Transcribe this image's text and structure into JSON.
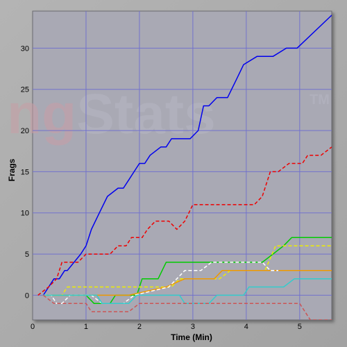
{
  "chart_data": {
    "type": "line",
    "title": "",
    "xlabel": "Time (Min)",
    "ylabel": "Frags",
    "xlim": [
      0,
      5.6
    ],
    "ylim": [
      -3,
      34.5
    ],
    "xticks": [
      0,
      1,
      2,
      3,
      4,
      5
    ],
    "yticks": [
      0,
      5,
      10,
      15,
      20,
      25,
      30
    ],
    "grid": true,
    "legend": "none",
    "plot_background": "#a9a9b4",
    "grid_color": "#7272cc",
    "watermark": {
      "part1": "ng",
      "part2": "Stats",
      "tm": "TM",
      "color1": "#c89ea6",
      "color2": "#b6b6c4"
    },
    "series": [
      {
        "color": "#0000ee",
        "style": "solid",
        "points": [
          [
            0.2,
            0
          ],
          [
            0.3,
            1
          ],
          [
            0.4,
            2
          ],
          [
            0.5,
            2
          ],
          [
            0.6,
            3
          ],
          [
            0.65,
            3
          ],
          [
            0.9,
            5
          ],
          [
            1.0,
            6
          ],
          [
            1.1,
            8
          ],
          [
            1.25,
            10
          ],
          [
            1.4,
            12
          ],
          [
            1.6,
            13
          ],
          [
            1.7,
            13
          ],
          [
            1.8,
            14
          ],
          [
            1.9,
            15
          ],
          [
            2.0,
            16
          ],
          [
            2.1,
            16
          ],
          [
            2.2,
            17
          ],
          [
            2.4,
            18
          ],
          [
            2.5,
            18
          ],
          [
            2.6,
            19
          ],
          [
            2.8,
            19
          ],
          [
            2.95,
            19
          ],
          [
            3.1,
            20
          ],
          [
            3.2,
            23
          ],
          [
            3.3,
            23
          ],
          [
            3.45,
            24
          ],
          [
            3.65,
            24
          ],
          [
            3.8,
            26
          ],
          [
            3.95,
            28
          ],
          [
            4.2,
            29
          ],
          [
            4.5,
            29
          ],
          [
            4.75,
            30
          ],
          [
            4.95,
            30
          ],
          [
            5.6,
            34
          ]
        ]
      },
      {
        "color": "#ee0000",
        "style": "dashed",
        "points": [
          [
            0.1,
            0
          ],
          [
            0.3,
            1
          ],
          [
            0.45,
            2
          ],
          [
            0.55,
            4
          ],
          [
            0.85,
            4
          ],
          [
            1.0,
            5
          ],
          [
            1.45,
            5
          ],
          [
            1.6,
            6
          ],
          [
            1.75,
            6
          ],
          [
            1.85,
            7
          ],
          [
            2.05,
            7
          ],
          [
            2.15,
            8
          ],
          [
            2.3,
            9
          ],
          [
            2.55,
            9
          ],
          [
            2.7,
            8
          ],
          [
            2.85,
            9
          ],
          [
            3.0,
            11
          ],
          [
            4.15,
            11
          ],
          [
            4.3,
            12
          ],
          [
            4.45,
            15
          ],
          [
            4.6,
            15
          ],
          [
            4.8,
            16
          ],
          [
            5.05,
            16
          ],
          [
            5.15,
            17
          ],
          [
            5.4,
            17
          ],
          [
            5.6,
            18
          ]
        ]
      },
      {
        "color": "#00cc00",
        "style": "solid",
        "points": [
          [
            0.2,
            0
          ],
          [
            1.0,
            0
          ],
          [
            1.15,
            -1
          ],
          [
            1.45,
            -1
          ],
          [
            1.55,
            0
          ],
          [
            1.95,
            0
          ],
          [
            2.05,
            2
          ],
          [
            2.35,
            2
          ],
          [
            2.5,
            4
          ],
          [
            3.3,
            4
          ],
          [
            4.3,
            4
          ],
          [
            4.5,
            5
          ],
          [
            4.7,
            6
          ],
          [
            4.85,
            7
          ],
          [
            5.6,
            7
          ]
        ]
      },
      {
        "color": "#eeee00",
        "style": "dashed",
        "points": [
          [
            0.2,
            0
          ],
          [
            0.55,
            0
          ],
          [
            0.65,
            1
          ],
          [
            2.1,
            1
          ],
          [
            2.3,
            1
          ],
          [
            2.6,
            1
          ],
          [
            2.75,
            2
          ],
          [
            3.2,
            2
          ],
          [
            3.5,
            2
          ],
          [
            3.7,
            3
          ],
          [
            4.35,
            3
          ],
          [
            4.55,
            6
          ],
          [
            5.6,
            6
          ]
        ]
      },
      {
        "color": "#ee9900",
        "style": "solid",
        "points": [
          [
            0.2,
            0
          ],
          [
            1.8,
            0
          ],
          [
            2.5,
            1
          ],
          [
            2.85,
            2
          ],
          [
            3.4,
            2
          ],
          [
            3.55,
            3
          ],
          [
            4.35,
            3
          ],
          [
            5.6,
            3
          ]
        ]
      },
      {
        "color": "#ffffff",
        "style": "dashed",
        "points": [
          [
            0.2,
            0
          ],
          [
            0.35,
            0
          ],
          [
            0.45,
            -1
          ],
          [
            0.55,
            -1
          ],
          [
            0.7,
            0
          ],
          [
            1.1,
            0
          ],
          [
            1.3,
            -1
          ],
          [
            1.7,
            -1
          ],
          [
            1.9,
            0
          ],
          [
            2.55,
            1
          ],
          [
            2.7,
            2
          ],
          [
            2.85,
            3
          ],
          [
            3.15,
            3
          ],
          [
            3.35,
            4
          ],
          [
            4.3,
            4
          ],
          [
            4.45,
            3
          ],
          [
            4.6,
            3
          ]
        ]
      },
      {
        "color": "#33cccc",
        "style": "solid",
        "points": [
          [
            0.2,
            0
          ],
          [
            1.2,
            0
          ],
          [
            1.3,
            -1
          ],
          [
            1.8,
            -1
          ],
          [
            1.95,
            0
          ],
          [
            2.75,
            0
          ],
          [
            2.85,
            -1
          ],
          [
            3.3,
            -1
          ],
          [
            3.45,
            0
          ],
          [
            3.95,
            0
          ],
          [
            4.05,
            1
          ],
          [
            4.7,
            1
          ],
          [
            4.9,
            2
          ],
          [
            5.6,
            2
          ]
        ]
      },
      {
        "color": "#cc5555",
        "style": "dashed",
        "points": [
          [
            0.2,
            0
          ],
          [
            0.4,
            -1
          ],
          [
            1.0,
            -1
          ],
          [
            1.1,
            -2
          ],
          [
            1.8,
            -2
          ],
          [
            2.0,
            -1
          ],
          [
            5.0,
            -1
          ],
          [
            5.2,
            -3
          ],
          [
            5.6,
            -3
          ]
        ]
      }
    ]
  }
}
